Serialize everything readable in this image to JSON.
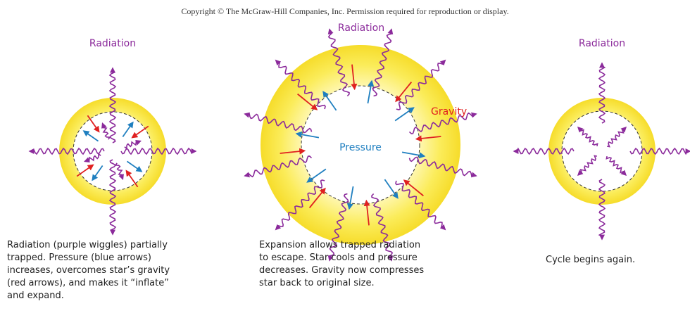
{
  "header": {
    "copyright": "Copyright © The McGraw-Hill Companies, Inc. Permission required for reproduction or display."
  },
  "panels": [
    {
      "radiation_label": "Radiation",
      "caption": [
        "Radiation (purple wiggles) partially",
        "trapped. Pressure (blue arrows)",
        "increases, overcomes star’s gravity",
        "(red arrows), and makes it “inflate”",
        "and expand."
      ]
    },
    {
      "radiation_label": "Radiation",
      "gravity_label": "Gravity",
      "pressure_label": "Pressure",
      "caption": [
        "Expansion allows trapped radiation",
        "to escape. Star cools and pressure",
        "decreases. Gravity now compresses",
        "star back to original size."
      ]
    },
    {
      "radiation_label": "Radiation",
      "caption": [
        "Cycle begins again."
      ]
    }
  ]
}
